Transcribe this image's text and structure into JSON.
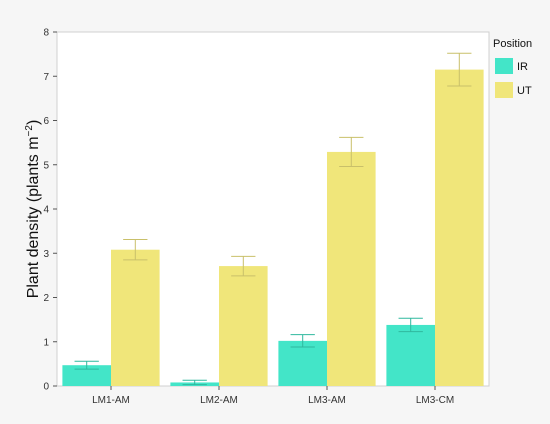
{
  "chart_data": {
    "type": "bar",
    "title": "",
    "xlabel": "",
    "ylabel": "Plant density (plants m",
    "ylabel_sup": "−2",
    "ylabel_close": ")",
    "categories": [
      "LM1-AM",
      "LM2-AM",
      "LM3-AM",
      "LM3-CM"
    ],
    "ylim": [
      0,
      8
    ],
    "yticks": [
      "0",
      "1",
      "2",
      "3",
      "4",
      "5",
      "6",
      "7",
      "8"
    ],
    "grid": false,
    "legend_title": "Position",
    "legend_position": "right",
    "series": [
      {
        "name": "IR",
        "color": "#43e5c8",
        "errcolor": "#2fb89e",
        "values": [
          0.47,
          0.08,
          1.02,
          1.38
        ],
        "errors": [
          0.09,
          0.05,
          0.14,
          0.15
        ]
      },
      {
        "name": "UT",
        "color": "#f0e67a",
        "errcolor": "#c9c06a",
        "values": [
          3.08,
          2.71,
          5.29,
          7.15
        ],
        "errors": [
          0.23,
          0.22,
          0.33,
          0.37
        ]
      }
    ]
  }
}
